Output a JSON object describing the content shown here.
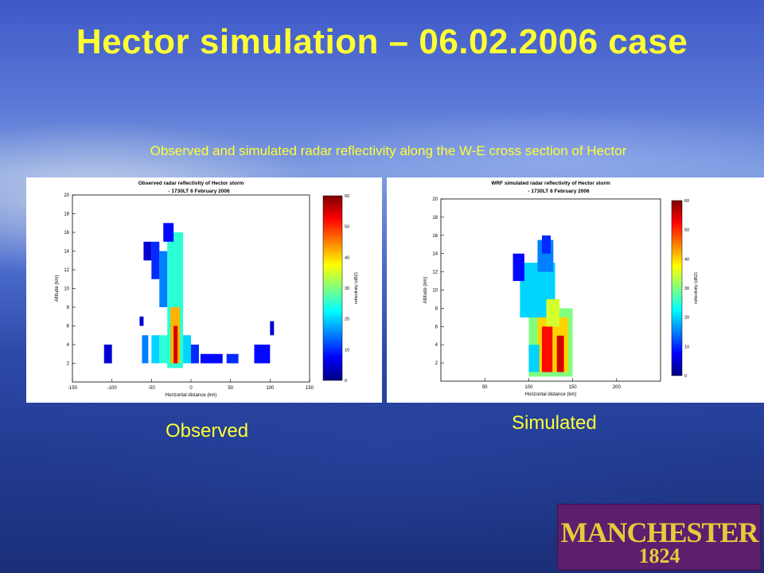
{
  "slide": {
    "title": "Hector simulation – 06.02.2006 case",
    "subtitle": "Observed and simulated radar reflectivity along the W-E cross section of Hector",
    "caption_observed": "Observed",
    "caption_simulated": "Simulated",
    "logo_text": "MANCHESTER",
    "logo_year": "1824"
  },
  "colors": {
    "title_text": "#ffff33",
    "logo_bg": "#5b1f6e",
    "logo_text": "#e9c93a"
  },
  "chart_data": [
    {
      "type": "heatmap",
      "title": "Observed radar reflectivity of Hector storm",
      "subtitle": "- 1730LT 6 February 2006",
      "xlabel": "Horizontal distance (km)",
      "ylabel": "Altitude (km)",
      "xlim": [
        -150,
        150
      ],
      "ylim": [
        0,
        20
      ],
      "xticks": [
        "-150",
        "-100",
        "-50",
        "0",
        "50",
        "100",
        "150"
      ],
      "yticks": [
        "2",
        "4",
        "6",
        "8",
        "10",
        "12",
        "14",
        "16",
        "18",
        "20"
      ],
      "colorbar": {
        "label": "reflectivity (dBZ)",
        "range": [
          0,
          60
        ],
        "ticks": [
          "0",
          "10",
          "20",
          "30",
          "40",
          "50",
          "60"
        ]
      },
      "cells": [
        {
          "x0": -30,
          "x1": -10,
          "y0": 1.5,
          "y1": 16,
          "dbz": 25
        },
        {
          "x0": -40,
          "x1": -30,
          "y0": 8,
          "y1": 14,
          "dbz": 15
        },
        {
          "x0": -50,
          "x1": -40,
          "y0": 11,
          "y1": 15,
          "dbz": 10
        },
        {
          "x0": -60,
          "x1": -50,
          "y0": 13,
          "y1": 15,
          "dbz": 5
        },
        {
          "x0": -35,
          "x1": -22,
          "y0": 15,
          "y1": 17,
          "dbz": 8
        },
        {
          "x0": -26,
          "x1": -14,
          "y0": 2,
          "y1": 8,
          "dbz": 42
        },
        {
          "x0": -22,
          "x1": -17,
          "y0": 2,
          "y1": 6,
          "dbz": 55
        },
        {
          "x0": -40,
          "x1": -26,
          "y0": 2,
          "y1": 5,
          "dbz": 25
        },
        {
          "x0": -50,
          "x1": -40,
          "y0": 2,
          "y1": 5,
          "dbz": 20
        },
        {
          "x0": -10,
          "x1": 0,
          "y0": 2,
          "y1": 5,
          "dbz": 20
        },
        {
          "x0": 0,
          "x1": 10,
          "y0": 2,
          "y1": 4,
          "dbz": 10
        },
        {
          "x0": -62,
          "x1": -54,
          "y0": 2,
          "y1": 5,
          "dbz": 15
        },
        {
          "x0": 12,
          "x1": 40,
          "y0": 2,
          "y1": 3,
          "dbz": 8
        },
        {
          "x0": 45,
          "x1": 60,
          "y0": 2,
          "y1": 3,
          "dbz": 10
        },
        {
          "x0": 80,
          "x1": 100,
          "y0": 2,
          "y1": 4,
          "dbz": 8
        },
        {
          "x0": -110,
          "x1": -100,
          "y0": 2,
          "y1": 4,
          "dbz": 5
        },
        {
          "x0": -65,
          "x1": -60,
          "y0": 6,
          "y1": 7,
          "dbz": 5
        },
        {
          "x0": 100,
          "x1": 105,
          "y0": 5,
          "y1": 6.5,
          "dbz": 5
        }
      ]
    },
    {
      "type": "heatmap",
      "title": "WRF simulated radar reflectivity of Hector storm",
      "subtitle": "- 1730LT 6 February 2006",
      "xlabel": "Horizontal distance (km)",
      "ylabel": "Altitude (km)",
      "xlim": [
        0,
        250
      ],
      "ylim": [
        0,
        20
      ],
      "xticks": [
        "50",
        "100",
        "150",
        "200"
      ],
      "yticks": [
        "2",
        "4",
        "6",
        "8",
        "10",
        "12",
        "14",
        "16",
        "18",
        "20"
      ],
      "colorbar": {
        "label": "reflectivity (dBZ)",
        "range": [
          0,
          60
        ],
        "ticks": [
          "0",
          "10",
          "20",
          "30",
          "40",
          "50",
          "60"
        ]
      },
      "cells": [
        {
          "x0": 100,
          "x1": 150,
          "y0": 0.5,
          "y1": 8,
          "dbz": 30
        },
        {
          "x0": 90,
          "x1": 130,
          "y0": 7,
          "y1": 13,
          "dbz": 20
        },
        {
          "x0": 82,
          "x1": 95,
          "y0": 11,
          "y1": 14,
          "dbz": 8
        },
        {
          "x0": 110,
          "x1": 128,
          "y0": 12,
          "y1": 15.5,
          "dbz": 15
        },
        {
          "x0": 115,
          "x1": 125,
          "y0": 14,
          "y1": 16,
          "dbz": 10
        },
        {
          "x0": 110,
          "x1": 145,
          "y0": 1,
          "y1": 7,
          "dbz": 40
        },
        {
          "x0": 115,
          "x1": 127,
          "y0": 1,
          "y1": 6,
          "dbz": 52
        },
        {
          "x0": 132,
          "x1": 140,
          "y0": 1,
          "y1": 5,
          "dbz": 55
        },
        {
          "x0": 120,
          "x1": 135,
          "y0": 6,
          "y1": 9,
          "dbz": 35
        },
        {
          "x0": 100,
          "x1": 112,
          "y0": 1,
          "y1": 4,
          "dbz": 20
        }
      ]
    }
  ]
}
